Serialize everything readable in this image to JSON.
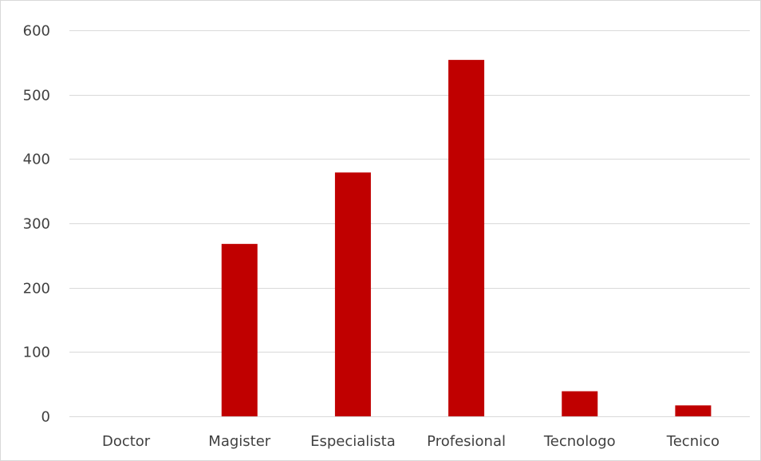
{
  "chart_data": {
    "type": "bar",
    "title": "",
    "xlabel": "",
    "ylabel": "",
    "categories": [
      "Doctor",
      "Magister",
      "Especialista",
      "Profesional",
      "Tecnologo",
      "Tecnico"
    ],
    "values": [
      0,
      268,
      379,
      554,
      39,
      17
    ],
    "ylim": [
      0,
      600
    ],
    "yticks": [
      0,
      100,
      200,
      300,
      400,
      500,
      600
    ],
    "grid": true,
    "legend": "none",
    "bar_color": "#c00000"
  }
}
